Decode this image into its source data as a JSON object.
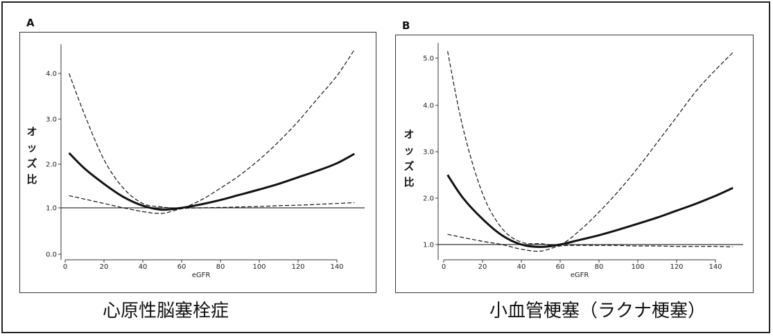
{
  "chart_data": [
    {
      "type": "line",
      "panel_label": "A",
      "title": "心原性脳塞栓症",
      "xlabel": "eGFR",
      "ylabel": "オッズ比",
      "xlim": [
        0,
        150
      ],
      "ylim": [
        0,
        4.5
      ],
      "x_ticks": [
        "0",
        "20",
        "40",
        "60",
        "80",
        "100",
        "120",
        "140"
      ],
      "y_ticks": [
        "0.0",
        "1.0",
        "2.0",
        "3.0",
        "4.0"
      ],
      "reference_line": 1.0,
      "series": [
        {
          "style": "solid-thick",
          "x": [
            2,
            10,
            20,
            30,
            40,
            50,
            60,
            70,
            80,
            90,
            100,
            110,
            120,
            130,
            140,
            149
          ],
          "y": [
            2.25,
            1.9,
            1.55,
            1.25,
            1.05,
            0.96,
            1.0,
            1.08,
            1.18,
            1.3,
            1.42,
            1.55,
            1.7,
            1.85,
            2.02,
            2.23
          ]
        },
        {
          "style": "dashed-upper",
          "x": [
            2,
            10,
            20,
            30,
            40,
            50,
            60,
            70,
            80,
            90,
            100,
            110,
            120,
            130,
            140,
            149
          ],
          "y": [
            4.0,
            3.1,
            2.1,
            1.45,
            1.1,
            1.02,
            1.0,
            1.18,
            1.45,
            1.75,
            2.1,
            2.5,
            2.95,
            3.45,
            3.95,
            4.52
          ]
        },
        {
          "style": "dashed-lower",
          "x": [
            2,
            10,
            20,
            30,
            40,
            50,
            60,
            70,
            80,
            90,
            100,
            110,
            120,
            130,
            140,
            149
          ],
          "y": [
            1.28,
            1.2,
            1.1,
            1.0,
            0.92,
            0.88,
            0.98,
            1.0,
            1.01,
            1.02,
            1.03,
            1.05,
            1.06,
            1.08,
            1.1,
            1.12
          ]
        }
      ]
    },
    {
      "type": "line",
      "panel_label": "B",
      "title": "小血管梗塞（ラクナ梗塞）",
      "xlabel": "eGFR",
      "ylabel": "オッズ比",
      "xlim": [
        0,
        150
      ],
      "ylim": [
        0.8,
        5.15
      ],
      "x_ticks": [
        "0",
        "20",
        "40",
        "60",
        "80",
        "100",
        "120",
        "140"
      ],
      "y_ticks": [
        "1.0",
        "2.0",
        "3.0",
        "4.0",
        "5.0"
      ],
      "reference_line": 1.0,
      "series": [
        {
          "style": "solid-thick",
          "x": [
            2,
            10,
            20,
            30,
            40,
            50,
            60,
            70,
            80,
            90,
            100,
            110,
            120,
            130,
            140,
            149
          ],
          "y": [
            2.5,
            2.0,
            1.55,
            1.2,
            1.0,
            0.95,
            1.0,
            1.1,
            1.2,
            1.32,
            1.45,
            1.58,
            1.73,
            1.88,
            2.05,
            2.22
          ]
        },
        {
          "style": "dashed-upper",
          "x": [
            2,
            10,
            20,
            30,
            40,
            50,
            60,
            70,
            80,
            90,
            100,
            110,
            120,
            130,
            140,
            149
          ],
          "y": [
            5.15,
            3.5,
            2.1,
            1.35,
            1.05,
            1.02,
            1.0,
            1.3,
            1.7,
            2.15,
            2.65,
            3.2,
            3.75,
            4.3,
            4.75,
            5.12
          ]
        },
        {
          "style": "dashed-lower",
          "x": [
            2,
            10,
            20,
            30,
            40,
            50,
            60,
            70,
            80,
            90,
            100,
            110,
            120,
            130,
            140,
            149
          ],
          "y": [
            1.22,
            1.15,
            1.07,
            1.0,
            0.9,
            0.86,
            0.97,
            0.98,
            0.98,
            0.98,
            0.97,
            0.97,
            0.96,
            0.96,
            0.96,
            0.95
          ]
        }
      ]
    }
  ]
}
